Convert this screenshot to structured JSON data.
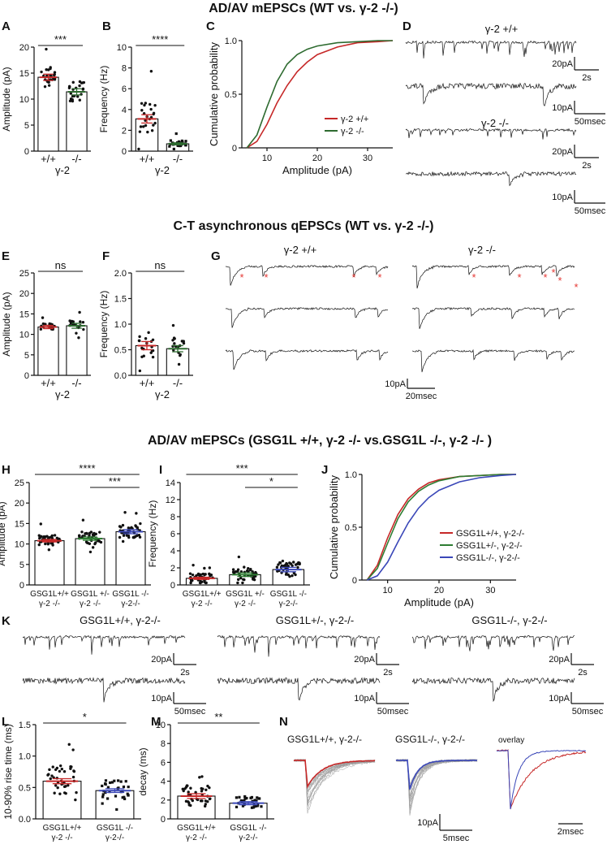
{
  "section_titles": {
    "s1": "AD/AV mEPSCs (WT vs. γ-2 -/-)",
    "s2": "C-T asynchronous qEPSCs (WT vs. γ-2 -/-)",
    "s3": "AD/AV mEPSCs (GSG1L +/+, γ-2 -/- vs.GSG1L -/-, γ-2 -/-  )"
  },
  "panel_letters": [
    "A",
    "B",
    "C",
    "D",
    "E",
    "F",
    "G",
    "H",
    "I",
    "J",
    "K",
    "L",
    "M",
    "N"
  ],
  "colors": {
    "wt": "#c62828",
    "ko": "#2e6b30",
    "ko2": "#3a47b8",
    "het": "#2e7d32",
    "sig": "#e53935",
    "black": "#111111",
    "gray": "#9e9e9e"
  },
  "chart_data": [
    {
      "id": "A",
      "type": "bar",
      "ylabel": "Amplitude (pA)",
      "ylim": [
        0,
        20
      ],
      "yticks": [
        "0",
        "5",
        "10",
        "15",
        "20"
      ],
      "categories": [
        "+/+",
        "-/-"
      ],
      "group_label": "γ-2",
      "values": [
        14.2,
        11.4
      ],
      "sem": [
        0.6,
        0.6
      ],
      "significance": "***"
    },
    {
      "id": "B",
      "type": "bar",
      "ylabel": "Frequency (Hz)",
      "ylim": [
        0,
        10
      ],
      "yticks": [
        "0",
        "2",
        "4",
        "6",
        "8",
        "10"
      ],
      "categories": [
        "+/+",
        "-/-"
      ],
      "group_label": "γ-2",
      "values": [
        3.1,
        0.7
      ],
      "sem": [
        0.4,
        0.1
      ],
      "significance": "****"
    },
    {
      "id": "C",
      "type": "line",
      "ylabel": "Cumulative probability",
      "xlabel": "Amplitude (pA)",
      "xlim": [
        5,
        35
      ],
      "ylim": [
        0,
        1
      ],
      "xticks": [
        "10",
        "20",
        "30"
      ],
      "yticks": [
        "0",
        "0.5",
        "1.0"
      ],
      "series": [
        {
          "name": "γ-2 +/+",
          "x": [
            6,
            8,
            10,
            12,
            14,
            16,
            18,
            20,
            24,
            28,
            32,
            35
          ],
          "y": [
            0,
            0.06,
            0.22,
            0.42,
            0.58,
            0.71,
            0.8,
            0.87,
            0.94,
            0.98,
            0.99,
            1.0
          ]
        },
        {
          "name": "γ-2 -/-",
          "x": [
            6,
            8,
            10,
            12,
            14,
            16,
            18,
            20,
            24,
            28,
            32,
            35
          ],
          "y": [
            0,
            0.12,
            0.38,
            0.62,
            0.78,
            0.87,
            0.92,
            0.95,
            0.98,
            0.99,
            1.0,
            1.0
          ]
        }
      ]
    },
    {
      "id": "E",
      "type": "bar",
      "ylabel": "Amplitude (pA)",
      "ylim": [
        0,
        25
      ],
      "yticks": [
        "0",
        "5",
        "10",
        "15",
        "20",
        "25"
      ],
      "categories": [
        "+/+",
        "-/-"
      ],
      "group_label": "γ-2",
      "values": [
        11.8,
        12.1
      ],
      "sem": [
        0.4,
        0.6
      ],
      "significance": "ns"
    },
    {
      "id": "F",
      "type": "bar",
      "ylabel": "Frequency (Hz)",
      "ylim": [
        0,
        2
      ],
      "yticks": [
        "0.0",
        "0.5",
        "1.0",
        "1.5",
        "2.0"
      ],
      "categories": [
        "+/+",
        "-/-"
      ],
      "group_label": "γ-2",
      "values": [
        0.58,
        0.52
      ],
      "sem": [
        0.08,
        0.06
      ],
      "significance": "ns"
    },
    {
      "id": "H",
      "type": "bar",
      "ylabel": "Amplitude (pA)",
      "ylim": [
        0,
        25
      ],
      "yticks": [
        "0",
        "5",
        "10",
        "15",
        "20",
        "25"
      ],
      "categories": [
        "GSG1L+/+\nγ-2 -/-",
        "GSG1L +/-\nγ-2 -/-",
        "GSG1L -/-\nγ-2-/-"
      ],
      "values": [
        10.8,
        11.3,
        13.0
      ],
      "sem": [
        0.3,
        0.4,
        0.5
      ],
      "significance": [
        "****",
        "***"
      ]
    },
    {
      "id": "I",
      "type": "bar",
      "ylabel": "Frequency (Hz)",
      "ylim": [
        0,
        14
      ],
      "yticks": [
        "0",
        "2",
        "4",
        "6",
        "8",
        "12",
        "14"
      ],
      "categories": [
        "GSG1L+/+\nγ-2 -/-",
        "GSG1L +/-\nγ-2 -/-",
        "GSG1L -/-\nγ-2-/-"
      ],
      "values": [
        0.9,
        1.4,
        2.1
      ],
      "sem": [
        0.15,
        0.25,
        0.3
      ],
      "significance": [
        "***",
        "*"
      ]
    },
    {
      "id": "J",
      "type": "line",
      "ylabel": "Cumulative probability",
      "xlabel": "Amplitude (pA)",
      "xlim": [
        5,
        35
      ],
      "ylim": [
        0,
        1
      ],
      "xticks": [
        "10",
        "20",
        "30"
      ],
      "yticks": [
        "0",
        "0.5",
        "1.0"
      ],
      "series": [
        {
          "name": "GSG1L+/+, γ-2-/-",
          "x": [
            6,
            8,
            10,
            12,
            14,
            16,
            18,
            20,
            24,
            28,
            32,
            35
          ],
          "y": [
            0,
            0.14,
            0.4,
            0.62,
            0.77,
            0.86,
            0.92,
            0.95,
            0.98,
            0.99,
            1.0,
            1.0
          ]
        },
        {
          "name": "GSG1L+/-, γ-2-/-",
          "x": [
            6,
            8,
            10,
            12,
            14,
            16,
            18,
            20,
            24,
            28,
            32,
            35
          ],
          "y": [
            0,
            0.11,
            0.35,
            0.58,
            0.74,
            0.84,
            0.9,
            0.94,
            0.98,
            0.99,
            1.0,
            1.0
          ]
        },
        {
          "name": "GSG1L-/-, γ-2-/-",
          "x": [
            6,
            8,
            10,
            12,
            14,
            16,
            18,
            20,
            24,
            28,
            32,
            35
          ],
          "y": [
            0,
            0.04,
            0.17,
            0.36,
            0.54,
            0.68,
            0.78,
            0.85,
            0.93,
            0.97,
            0.99,
            1.0
          ]
        }
      ]
    },
    {
      "id": "L",
      "type": "bar",
      "ylabel": "10-90% rise time (ms)",
      "ylim": [
        0,
        1.5
      ],
      "yticks": [
        "0.0",
        "0.5",
        "1.0",
        "1.5"
      ],
      "categories": [
        "GSG1L+/+\nγ-2 -/-",
        "GSG1L -/-\nγ-2-/-"
      ],
      "values": [
        0.6,
        0.45
      ],
      "sem": [
        0.04,
        0.03
      ],
      "significance": "*"
    },
    {
      "id": "M",
      "type": "bar",
      "ylabel": "decay (ms)",
      "ylim": [
        0,
        12
      ],
      "yticks": [
        "0",
        "2",
        "4",
        "6",
        "8",
        "10"
      ],
      "categories": [
        "GSG1L+/+\nγ-2 -/-",
        "GSG1L -/-\nγ-2-/-"
      ],
      "values": [
        2.9,
        2.0
      ],
      "sem": [
        0.3,
        0.2
      ],
      "significance": "**"
    }
  ],
  "traces": {
    "D": {
      "top_label": "γ-2 +/+",
      "bottom_label": "γ-2 -/-",
      "scales": [
        "20pA",
        "2s",
        "10pA",
        "50msec",
        "20pA",
        "2s",
        "10pA",
        "50msec"
      ]
    },
    "G": {
      "left_label": "γ-2 +/+",
      "right_label": "γ-2 -/-",
      "scales": [
        "10pA",
        "20msec"
      ],
      "event_marker": "*"
    },
    "K": {
      "labels": [
        "GSG1L+/+, γ-2-/-",
        "GSG1L+/-, γ-2-/-",
        "GSG1L-/-, γ-2-/-"
      ],
      "scales": [
        "20pA",
        "2s",
        "10pA",
        "50msec"
      ]
    },
    "N": {
      "labels": [
        "GSG1L+/+, γ-2-/-",
        "GSG1L-/-, γ-2-/-",
        "overlay"
      ],
      "scales": [
        "10pA",
        "5msec",
        "2msec"
      ]
    }
  }
}
